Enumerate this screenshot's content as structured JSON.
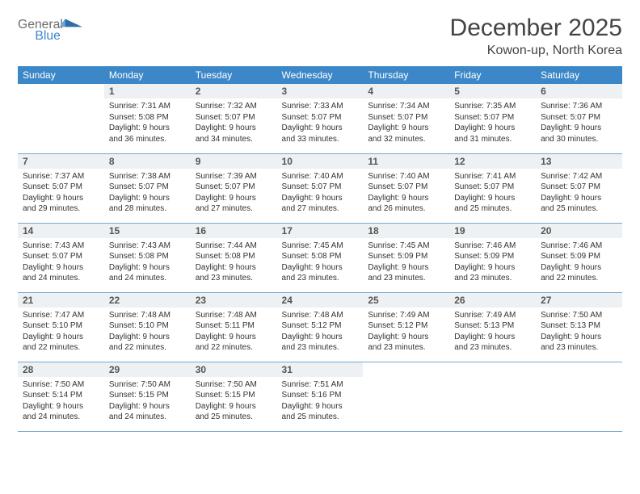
{
  "brand": {
    "word1": "General",
    "word2": "Blue",
    "word1_color": "#6d6d6d",
    "word2_color": "#3c87c7"
  },
  "title": "December 2025",
  "subtitle": "Kowon-up, North Korea",
  "colors": {
    "header_bg": "#3c87c7",
    "header_fg": "#ffffff",
    "daynum_bg": "#eef1f3",
    "rule": "#7aa7cc"
  },
  "fontsizes": {
    "title": 30,
    "subtitle": 16,
    "dayhead": 12,
    "daynum": 12,
    "body": 10
  },
  "day_headers": [
    "Sunday",
    "Monday",
    "Tuesday",
    "Wednesday",
    "Thursday",
    "Friday",
    "Saturday"
  ],
  "weeks": [
    [
      {
        "n": "",
        "lines": [
          "",
          "",
          "",
          ""
        ]
      },
      {
        "n": "1",
        "lines": [
          "Sunrise: 7:31 AM",
          "Sunset: 5:08 PM",
          "Daylight: 9 hours",
          "and 36 minutes."
        ]
      },
      {
        "n": "2",
        "lines": [
          "Sunrise: 7:32 AM",
          "Sunset: 5:07 PM",
          "Daylight: 9 hours",
          "and 34 minutes."
        ]
      },
      {
        "n": "3",
        "lines": [
          "Sunrise: 7:33 AM",
          "Sunset: 5:07 PM",
          "Daylight: 9 hours",
          "and 33 minutes."
        ]
      },
      {
        "n": "4",
        "lines": [
          "Sunrise: 7:34 AM",
          "Sunset: 5:07 PM",
          "Daylight: 9 hours",
          "and 32 minutes."
        ]
      },
      {
        "n": "5",
        "lines": [
          "Sunrise: 7:35 AM",
          "Sunset: 5:07 PM",
          "Daylight: 9 hours",
          "and 31 minutes."
        ]
      },
      {
        "n": "6",
        "lines": [
          "Sunrise: 7:36 AM",
          "Sunset: 5:07 PM",
          "Daylight: 9 hours",
          "and 30 minutes."
        ]
      }
    ],
    [
      {
        "n": "7",
        "lines": [
          "Sunrise: 7:37 AM",
          "Sunset: 5:07 PM",
          "Daylight: 9 hours",
          "and 29 minutes."
        ]
      },
      {
        "n": "8",
        "lines": [
          "Sunrise: 7:38 AM",
          "Sunset: 5:07 PM",
          "Daylight: 9 hours",
          "and 28 minutes."
        ]
      },
      {
        "n": "9",
        "lines": [
          "Sunrise: 7:39 AM",
          "Sunset: 5:07 PM",
          "Daylight: 9 hours",
          "and 27 minutes."
        ]
      },
      {
        "n": "10",
        "lines": [
          "Sunrise: 7:40 AM",
          "Sunset: 5:07 PM",
          "Daylight: 9 hours",
          "and 27 minutes."
        ]
      },
      {
        "n": "11",
        "lines": [
          "Sunrise: 7:40 AM",
          "Sunset: 5:07 PM",
          "Daylight: 9 hours",
          "and 26 minutes."
        ]
      },
      {
        "n": "12",
        "lines": [
          "Sunrise: 7:41 AM",
          "Sunset: 5:07 PM",
          "Daylight: 9 hours",
          "and 25 minutes."
        ]
      },
      {
        "n": "13",
        "lines": [
          "Sunrise: 7:42 AM",
          "Sunset: 5:07 PM",
          "Daylight: 9 hours",
          "and 25 minutes."
        ]
      }
    ],
    [
      {
        "n": "14",
        "lines": [
          "Sunrise: 7:43 AM",
          "Sunset: 5:07 PM",
          "Daylight: 9 hours",
          "and 24 minutes."
        ]
      },
      {
        "n": "15",
        "lines": [
          "Sunrise: 7:43 AM",
          "Sunset: 5:08 PM",
          "Daylight: 9 hours",
          "and 24 minutes."
        ]
      },
      {
        "n": "16",
        "lines": [
          "Sunrise: 7:44 AM",
          "Sunset: 5:08 PM",
          "Daylight: 9 hours",
          "and 23 minutes."
        ]
      },
      {
        "n": "17",
        "lines": [
          "Sunrise: 7:45 AM",
          "Sunset: 5:08 PM",
          "Daylight: 9 hours",
          "and 23 minutes."
        ]
      },
      {
        "n": "18",
        "lines": [
          "Sunrise: 7:45 AM",
          "Sunset: 5:09 PM",
          "Daylight: 9 hours",
          "and 23 minutes."
        ]
      },
      {
        "n": "19",
        "lines": [
          "Sunrise: 7:46 AM",
          "Sunset: 5:09 PM",
          "Daylight: 9 hours",
          "and 23 minutes."
        ]
      },
      {
        "n": "20",
        "lines": [
          "Sunrise: 7:46 AM",
          "Sunset: 5:09 PM",
          "Daylight: 9 hours",
          "and 22 minutes."
        ]
      }
    ],
    [
      {
        "n": "21",
        "lines": [
          "Sunrise: 7:47 AM",
          "Sunset: 5:10 PM",
          "Daylight: 9 hours",
          "and 22 minutes."
        ]
      },
      {
        "n": "22",
        "lines": [
          "Sunrise: 7:48 AM",
          "Sunset: 5:10 PM",
          "Daylight: 9 hours",
          "and 22 minutes."
        ]
      },
      {
        "n": "23",
        "lines": [
          "Sunrise: 7:48 AM",
          "Sunset: 5:11 PM",
          "Daylight: 9 hours",
          "and 22 minutes."
        ]
      },
      {
        "n": "24",
        "lines": [
          "Sunrise: 7:48 AM",
          "Sunset: 5:12 PM",
          "Daylight: 9 hours",
          "and 23 minutes."
        ]
      },
      {
        "n": "25",
        "lines": [
          "Sunrise: 7:49 AM",
          "Sunset: 5:12 PM",
          "Daylight: 9 hours",
          "and 23 minutes."
        ]
      },
      {
        "n": "26",
        "lines": [
          "Sunrise: 7:49 AM",
          "Sunset: 5:13 PM",
          "Daylight: 9 hours",
          "and 23 minutes."
        ]
      },
      {
        "n": "27",
        "lines": [
          "Sunrise: 7:50 AM",
          "Sunset: 5:13 PM",
          "Daylight: 9 hours",
          "and 23 minutes."
        ]
      }
    ],
    [
      {
        "n": "28",
        "lines": [
          "Sunrise: 7:50 AM",
          "Sunset: 5:14 PM",
          "Daylight: 9 hours",
          "and 24 minutes."
        ]
      },
      {
        "n": "29",
        "lines": [
          "Sunrise: 7:50 AM",
          "Sunset: 5:15 PM",
          "Daylight: 9 hours",
          "and 24 minutes."
        ]
      },
      {
        "n": "30",
        "lines": [
          "Sunrise: 7:50 AM",
          "Sunset: 5:15 PM",
          "Daylight: 9 hours",
          "and 25 minutes."
        ]
      },
      {
        "n": "31",
        "lines": [
          "Sunrise: 7:51 AM",
          "Sunset: 5:16 PM",
          "Daylight: 9 hours",
          "and 25 minutes."
        ]
      },
      {
        "n": "",
        "lines": [
          "",
          "",
          "",
          ""
        ]
      },
      {
        "n": "",
        "lines": [
          "",
          "",
          "",
          ""
        ]
      },
      {
        "n": "",
        "lines": [
          "",
          "",
          "",
          ""
        ]
      }
    ]
  ]
}
